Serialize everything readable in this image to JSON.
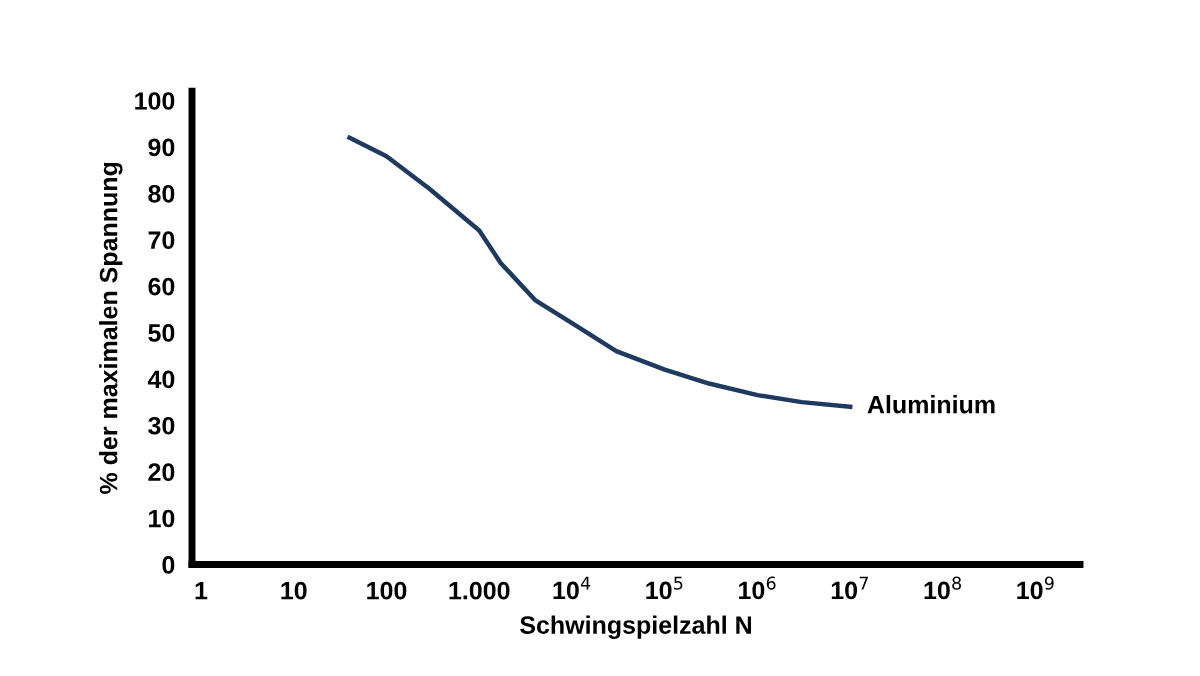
{
  "chart_data": {
    "type": "line",
    "xlabel": "Schwingspielzahl N",
    "ylabel": "% der maximalen Spannung",
    "log": "x",
    "grid": false,
    "legend": false,
    "xlim": [
      0.8,
      3000000000
    ],
    "ylim": [
      0,
      102
    ],
    "xticks": [
      1,
      10,
      100,
      {
        "value": 1000,
        "label": "1.000"
      },
      {
        "value": 10000,
        "label": "10$^{4}$"
      },
      {
        "value": 100000,
        "label": "10$^{5}$"
      },
      {
        "value": 1000000,
        "label": "10$^{6}$"
      },
      {
        "value": 10000000,
        "label": "10$^{7}$"
      },
      {
        "value": 100000000,
        "label": "10$^{8}$"
      },
      {
        "value": 1000000000,
        "label": "10$^{9}$"
      }
    ],
    "yticks": [
      0,
      10,
      20,
      30,
      40,
      50,
      60,
      70,
      80,
      90,
      100
    ],
    "series": [
      {
        "name": "Aluminium",
        "color": "#1f3a5f",
        "x": [
          40,
          100,
          290,
          1000,
          1700,
          4000,
          10000,
          30000,
          100000,
          300000,
          1000000,
          3000000,
          10000000
        ],
        "values": [
          92,
          88,
          81,
          72,
          65,
          57,
          52,
          46,
          42,
          39,
          36.5,
          35,
          34
        ]
      }
    ]
  }
}
